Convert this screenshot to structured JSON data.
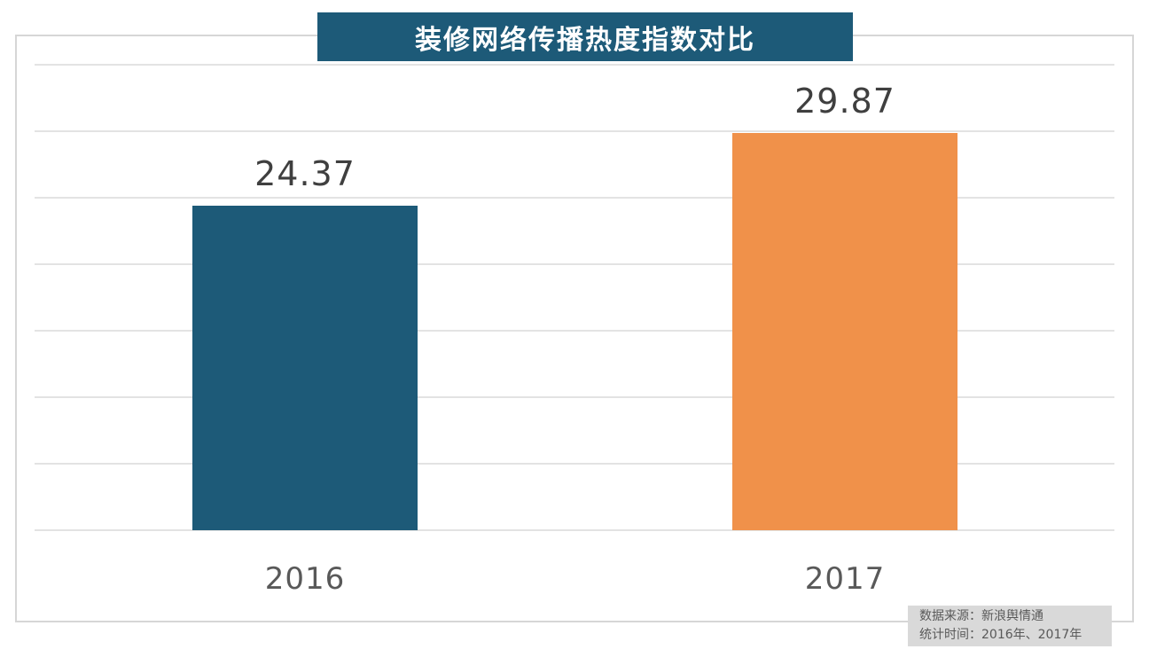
{
  "title": "装修网络传播热度指数对比",
  "chart_data": {
    "type": "bar",
    "title": "装修网络传播热度指数对比",
    "categories": [
      "2016",
      "2017"
    ],
    "values": [
      24.37,
      29.87
    ],
    "value_labels": [
      "24.37",
      "29.87"
    ],
    "xlabel": "",
    "ylabel": "",
    "ylim": [
      0,
      35
    ],
    "grid_step": 5,
    "grid": true,
    "legend": false,
    "bar_colors": [
      "#1d5a78",
      "#f0914a"
    ]
  },
  "colors": {
    "title_bg": "#1d5a78",
    "title_text": "#ffffff",
    "bar_2016": "#1d5a78",
    "bar_2017": "#f0914a",
    "gridline": "#e3e3e3",
    "frame_border": "#d6d6d6",
    "value_label_text": "#3f3f3f",
    "category_label_text": "#595959",
    "footer_bg": "#d9d9d9",
    "footer_text": "#595959"
  },
  "footer": {
    "source_line": "数据来源：新浪舆情通",
    "period_line": "统计时间：2016年、2017年"
  }
}
